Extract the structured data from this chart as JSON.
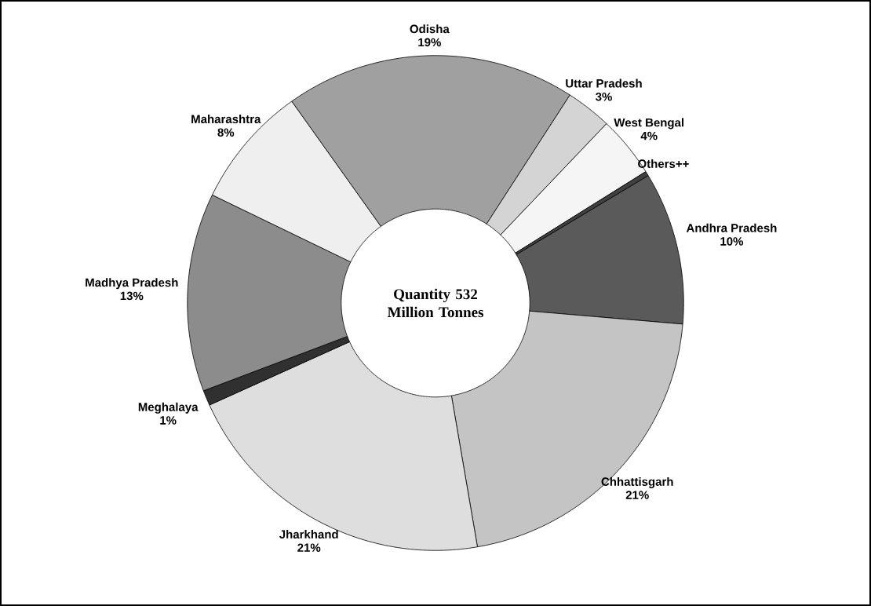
{
  "chart_data": {
    "type": "donut",
    "categories": [
      "Andhra Pradesh",
      "Chhattisgarh",
      "Jharkhand",
      "Meghalaya",
      "Madhya Pradesh",
      "Maharashtra",
      "Odisha",
      "Uttar Pradesh",
      "West Bengal",
      "Others++"
    ],
    "values": [
      10,
      21,
      21,
      1,
      13,
      8,
      19,
      3,
      4,
      0.3
    ],
    "value_labels": [
      "10%",
      "21%",
      "21%",
      "1%",
      "13%",
      "8%",
      "19%",
      "3%",
      "4%",
      null
    ],
    "colors": [
      "#5a5a5a",
      "#c4c4c4",
      "#dedede",
      "#303030",
      "#8c8c8c",
      "#efefef",
      "#a0a0a0",
      "#d4d4d4",
      "#f5f5f5",
      "#404040"
    ],
    "annotations": [
      "Quantity 532 Million Tonnes"
    ]
  }
}
